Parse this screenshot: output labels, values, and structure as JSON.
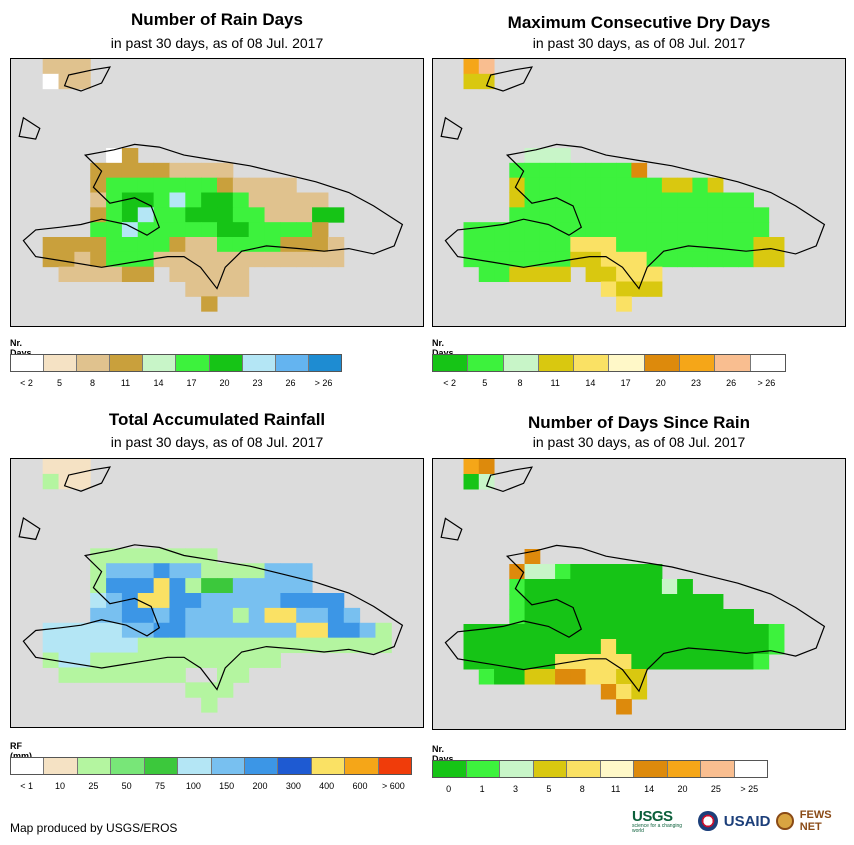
{
  "panels": [
    {
      "title": "Number of Rain Days",
      "subtitle": "in past 30 days, as of 08 Jul. 2017",
      "legend_title": "Nr. Days",
      "legend_colors": [
        "#ffffff",
        "#f5e2c4",
        "#e0c28e",
        "#c9a03c",
        "#c8f5c8",
        "#3df23d",
        "#16c416",
        "#b4e6f5",
        "#64b4f0",
        "#1e8cd2"
      ],
      "legend_labels": [
        "< 2",
        "5",
        "8",
        "11",
        "14",
        "17",
        "20",
        "23",
        "26",
        "> 26"
      ],
      "grid": [
        "..hhh.....................",
        "..whh.....................",
        "..........................",
        "..........................",
        "..........................",
        "..........................",
        "......wt..................",
        ".....ttttthhhh............",
        ".....tgggggggthhhh........",
        ".....hgGGgbgGGghhhhh......",
        ".....tgGbggGGGgghhhGG.....",
        ".....ggbgggggGGggggt......",
        "..mmttggggmhhggggttmh.....",
        "..mmhtggghhhhhhhhhhhh.....",
        "...hhhhtt.hhhhh...........",
        "...........hhhh...........",
        "............m.............",
        ".........................."
      ]
    },
    {
      "title": "Maximum Consecutive Dry Days",
      "subtitle": "in past 30 days, as of 08 Jul. 2017",
      "legend_title": "Nr. Days",
      "legend_colors": [
        "#16c416",
        "#3df23d",
        "#c8f5c8",
        "#d9c810",
        "#fae164",
        "#fff8c8",
        "#dd8a0c",
        "#f5a618",
        "#f9be90",
        "#ffffff"
      ],
      "legend_labels": [
        "< 2",
        "5",
        "8",
        "11",
        "14",
        "17",
        "20",
        "23",
        "26",
        "> 26"
      ],
      "grid": [
        "..ap.......................",
        "..dd.......................",
        "..........................",
        "..........................",
        "..........................",
        "..........................",
        "......lll.................",
        ".....ggggggggo............",
        ".....dgggggggggddgd.......",
        ".....dggggggggggggggg.....",
        ".....ggggggggggggggggg....",
        "..gggggggggggggggggggg....",
        "..gggggggeeegggggggggdd...",
        "..gggggggddeeegggggggdd...",
        "...ggdddd.ddeee...........",
        "...........eddd...........",
        "............e.............",
        ".........................."
      ]
    },
    {
      "title": "Total Accumulated Rainfall",
      "subtitle": "in past 30 days, as of 08 Jul. 2017",
      "legend_title": "RF (mm)",
      "legend_colors": [
        "#ffffff",
        "#f5e2c4",
        "#b4f5a0",
        "#78e678",
        "#3cc83c",
        "#b4e6f5",
        "#78c0f0",
        "#3c96e6",
        "#1e5ad2",
        "#fae164",
        "#f5a618",
        "#f03c0a"
      ],
      "legend_labels": [
        "< 1",
        "10",
        "25",
        "50",
        "75",
        "100",
        "150",
        "200",
        "300",
        "400",
        "600",
        "> 600"
      ],
      "grid": [
        "..hhh.....................",
        "..ghh.....................",
        "..........................",
        "..........................",
        "..........................",
        "..........................",
        ".....gggggggg.............",
        ".....gbbbBbbggggbbb.......",
        ".....gBBByBgGGbbbbb.......",
        ".....lbByyBBbbbbbBBBB.....",
        ".....bbBBbBbbbgbyybbBb....",
        "..lllllbbBBbbbbbbbyyBBbg..",
        "..llllllgggggggggggggggg..",
        "..gllgggggggggggg.........",
        "...gggggggg..gg...........",
        "...........ggg............",
        "............g.............",
        ".........................."
      ]
    },
    {
      "title": "Number of Days Since Rain",
      "subtitle": "in past 30 days, as of 08 Jul. 2017",
      "legend_title": "Nr. Days",
      "legend_colors": [
        "#16c416",
        "#3df23d",
        "#c8f5c8",
        "#d9c810",
        "#fae164",
        "#fff8c8",
        "#dd8a0c",
        "#f5a618",
        "#f9be90",
        "#ffffff"
      ],
      "legend_labels": [
        "0",
        "1",
        "3",
        "5",
        "8",
        "11",
        "14",
        "20",
        "25",
        "> 25"
      ],
      "grid": [
        "..ao.......................",
        "..Gl.......................",
        "..........................",
        "..........................",
        "..........................",
        "..........................",
        "......o...................",
        ".....ollgGGGGGG...........",
        ".....gGGGGGGGGGlG.........",
        ".....gGGGGGGGGGGGGG.......",
        ".....gGGGGGGGGGGGGGGG.....",
        "..GGGGGGGGGGGGGGGGGGGGg...",
        "..GGGGGGGGGeGGGGGGGGGGg...",
        "..GGGGGGeeeeeGGGGGGGGg....",
        "...gGGddooeedd............",
        "...........oed............",
        "............o.............",
        ".........................."
      ]
    }
  ],
  "footer": {
    "credit": "Map produced by USGS/EROS"
  },
  "logos": {
    "usgs": "USGS",
    "usgs_tagline": "science for a changing world",
    "usaid": "USAID",
    "fewsnet": "FEWS NET"
  }
}
